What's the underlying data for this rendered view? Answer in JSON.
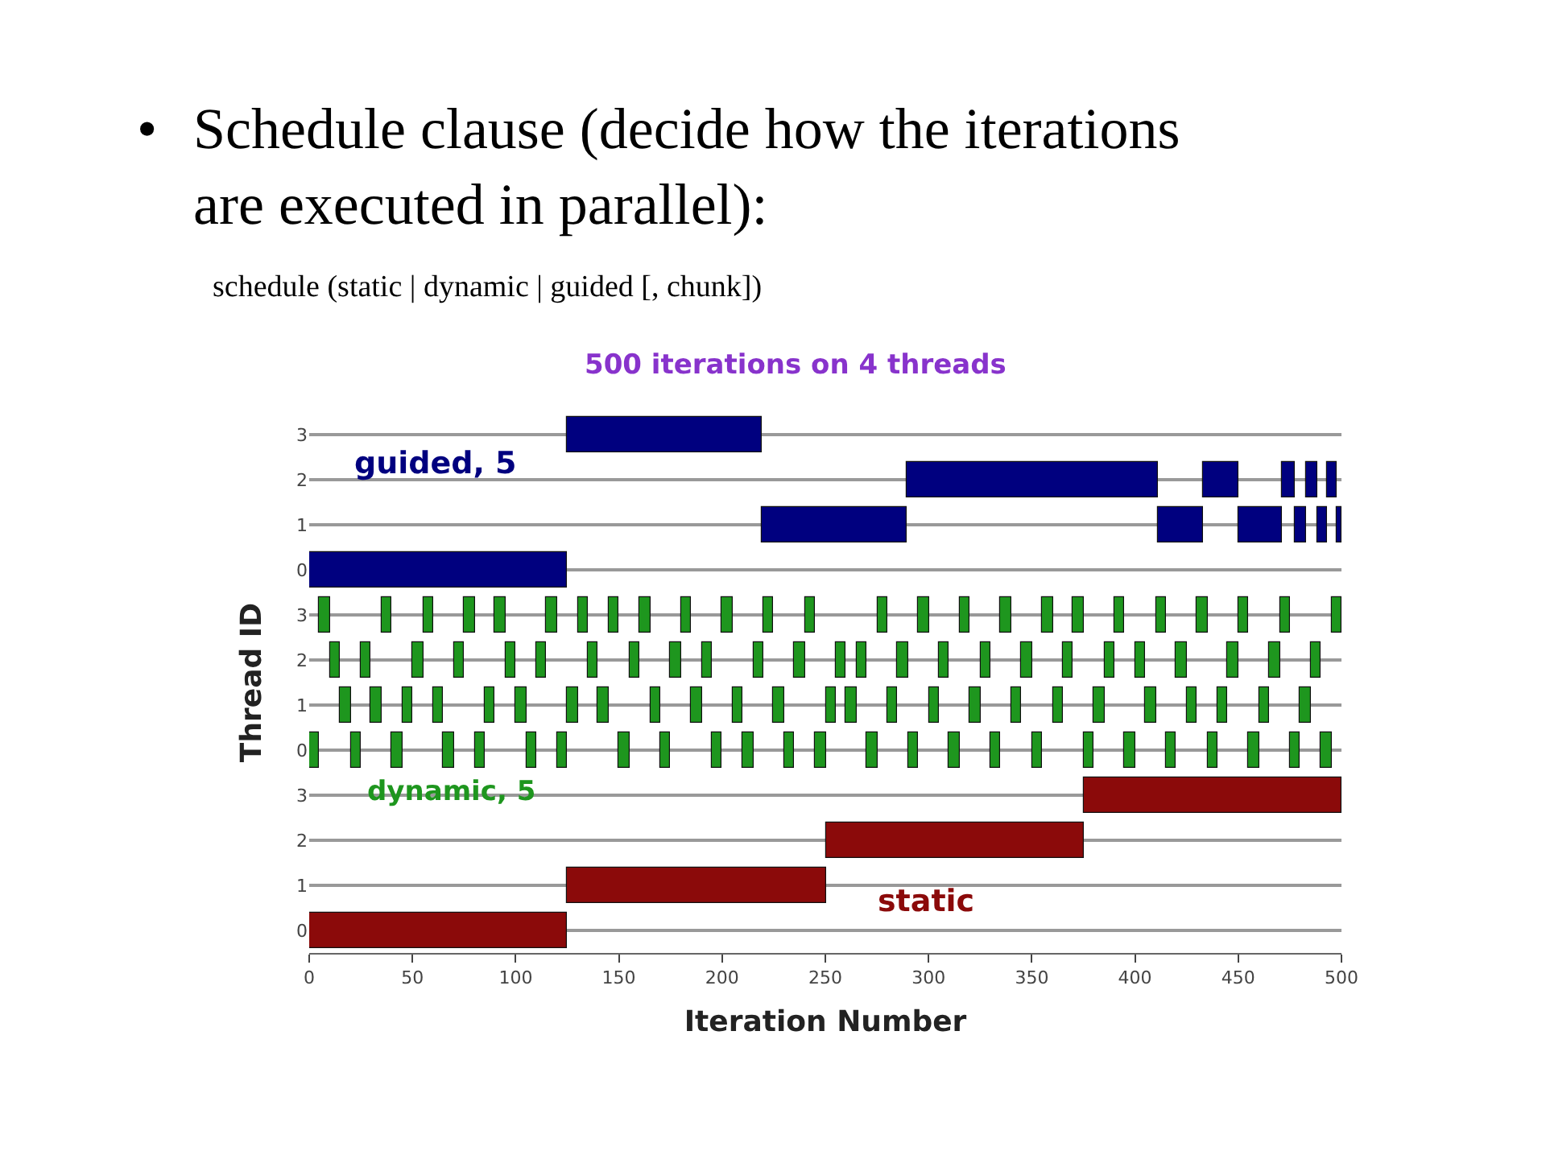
{
  "chart_data": [
    {
      "type": "bar",
      "orientation": "horizontal",
      "title": "500 iterations on 4 threads",
      "annotations": [
        "•",
        "Schedule clause (decide how the iterations are executed in parallel):",
        "schedule (static | dynamic | guided [, chunk])",
        "guided, 5"
      ],
      "categories": [
        "3",
        "2",
        "1",
        "0"
      ],
      "xlim": [
        0,
        500
      ],
      "xticks": [
        0,
        50,
        100,
        150,
        200,
        250,
        300,
        350,
        400,
        450,
        500
      ],
      "tick_labels": "y",
      "grid": "y",
      "series": [
        {
          "color": "#00007f",
          "values": [
            94,
            122,
            70,
            125
          ],
          "base": [
            125,
            289,
            219,
            0
          ]
        },
        {
          "color": "#00007f",
          "values": [
            null,
            17,
            22,
            null
          ],
          "base": [
            null,
            433,
            411,
            null
          ]
        },
        {
          "color": "#00007f",
          "values": [
            null,
            6,
            21,
            null
          ],
          "base": [
            null,
            471,
            450,
            null
          ]
        },
        {
          "color": "#00007f",
          "values": [
            null,
            5,
            6,
            null
          ],
          "base": [
            null,
            483,
            477,
            null
          ]
        },
        {
          "color": "#00007f",
          "values": [
            null,
            5,
            5,
            null
          ],
          "base": [
            null,
            493,
            488,
            null
          ]
        },
        {
          "color": "#00007f",
          "values": [
            null,
            null,
            2,
            null
          ],
          "base": [
            null,
            null,
            498,
            null
          ]
        }
      ]
    },
    {
      "type": "bar",
      "orientation": "horizontal",
      "ylabel": "Thread ID",
      "annotations": [
        "dynamic, 5"
      ],
      "categories": [
        "3",
        "2",
        "1",
        "0"
      ],
      "xlim": [
        0,
        500
      ],
      "xticks": [
        0,
        50,
        100,
        150,
        200,
        250,
        300,
        350,
        400,
        450,
        500
      ],
      "tick_labels": "y",
      "grid": "y",
      "series": [
        {
          "color": "#1e961e",
          "values": [
            5,
            5,
            5,
            5
          ],
          "base": [
            5,
            10,
            15,
            0
          ]
        },
        {
          "color": "#1e961e",
          "values": [
            5,
            5,
            5,
            5
          ],
          "base": [
            35,
            25,
            30,
            20
          ]
        },
        {
          "color": "#1e961e",
          "values": [
            5,
            5,
            5,
            5
          ],
          "base": [
            55,
            50,
            45,
            40
          ]
        },
        {
          "color": "#1e961e",
          "values": [
            5,
            5,
            5,
            5
          ],
          "base": [
            75,
            70,
            60,
            65
          ]
        },
        {
          "color": "#1e961e",
          "values": [
            5,
            5,
            5,
            5
          ],
          "base": [
            90,
            95,
            85,
            80
          ]
        },
        {
          "color": "#1e961e",
          "values": [
            5,
            5,
            5,
            5
          ],
          "base": [
            115,
            110,
            100,
            105
          ]
        },
        {
          "color": "#1e961e",
          "values": [
            5,
            5,
            5,
            5
          ],
          "base": [
            130,
            135,
            125,
            120
          ]
        },
        {
          "color": "#1e961e",
          "values": [
            5,
            5,
            5,
            5
          ],
          "base": [
            145,
            155,
            140,
            150
          ]
        },
        {
          "color": "#1e961e",
          "values": [
            5,
            5,
            5,
            5
          ],
          "base": [
            160,
            175,
            165,
            170
          ]
        },
        {
          "color": "#1e961e",
          "values": [
            5,
            5,
            5,
            5
          ],
          "base": [
            180,
            190,
            185,
            195
          ]
        },
        {
          "color": "#1e961e",
          "values": [
            5,
            5,
            5,
            5
          ],
          "base": [
            200,
            215,
            205,
            210
          ]
        },
        {
          "color": "#1e961e",
          "values": [
            5,
            5,
            5,
            5
          ],
          "base": [
            220,
            235,
            225,
            230
          ]
        },
        {
          "color": "#1e961e",
          "values": [
            5,
            5,
            5,
            5
          ],
          "base": [
            240,
            255,
            250,
            245
          ]
        },
        {
          "color": "#1e961e",
          "values": [
            5,
            5,
            5,
            5
          ],
          "base": [
            275,
            265,
            260,
            270
          ]
        },
        {
          "color": "#1e961e",
          "values": [
            5,
            5,
            5,
            5
          ],
          "base": [
            295,
            285,
            280,
            290
          ]
        },
        {
          "color": "#1e961e",
          "values": [
            5,
            5,
            5,
            5
          ],
          "base": [
            315,
            305,
            300,
            310
          ]
        },
        {
          "color": "#1e961e",
          "values": [
            5,
            5,
            5,
            5
          ],
          "base": [
            335,
            325,
            320,
            330
          ]
        },
        {
          "color": "#1e961e",
          "values": [
            5,
            5,
            5,
            5
          ],
          "base": [
            355,
            345,
            340,
            350
          ]
        },
        {
          "color": "#1e961e",
          "values": [
            5,
            5,
            5,
            5
          ],
          "base": [
            370,
            365,
            360,
            375
          ]
        },
        {
          "color": "#1e961e",
          "values": [
            5,
            5,
            5,
            5
          ],
          "base": [
            390,
            385,
            380,
            395
          ]
        },
        {
          "color": "#1e961e",
          "values": [
            5,
            5,
            5,
            5
          ],
          "base": [
            410,
            400,
            405,
            415
          ]
        },
        {
          "color": "#1e961e",
          "values": [
            5,
            5,
            5,
            5
          ],
          "base": [
            430,
            420,
            425,
            435
          ]
        },
        {
          "color": "#1e961e",
          "values": [
            5,
            5,
            5,
            5
          ],
          "base": [
            450,
            445,
            440,
            455
          ]
        },
        {
          "color": "#1e961e",
          "values": [
            5,
            5,
            5,
            5
          ],
          "base": [
            470,
            465,
            460,
            475
          ]
        },
        {
          "color": "#1e961e",
          "values": [
            5,
            5,
            5,
            5
          ],
          "base": [
            495,
            485,
            480,
            490
          ]
        }
      ]
    },
    {
      "type": "bar",
      "orientation": "horizontal",
      "xlabel": "Iteration Number",
      "annotations": [
        "static"
      ],
      "categories": [
        "3",
        "2",
        "1",
        "0"
      ],
      "xlim": [
        0,
        500
      ],
      "xticks": [
        0,
        50,
        100,
        150,
        200,
        250,
        300,
        350,
        400,
        450,
        500
      ],
      "grid": "y",
      "series": [
        {
          "color": "#8b0a0a",
          "values": [
            125,
            125,
            125,
            125
          ],
          "base": [
            375,
            250,
            125,
            0
          ]
        }
      ]
    }
  ]
}
